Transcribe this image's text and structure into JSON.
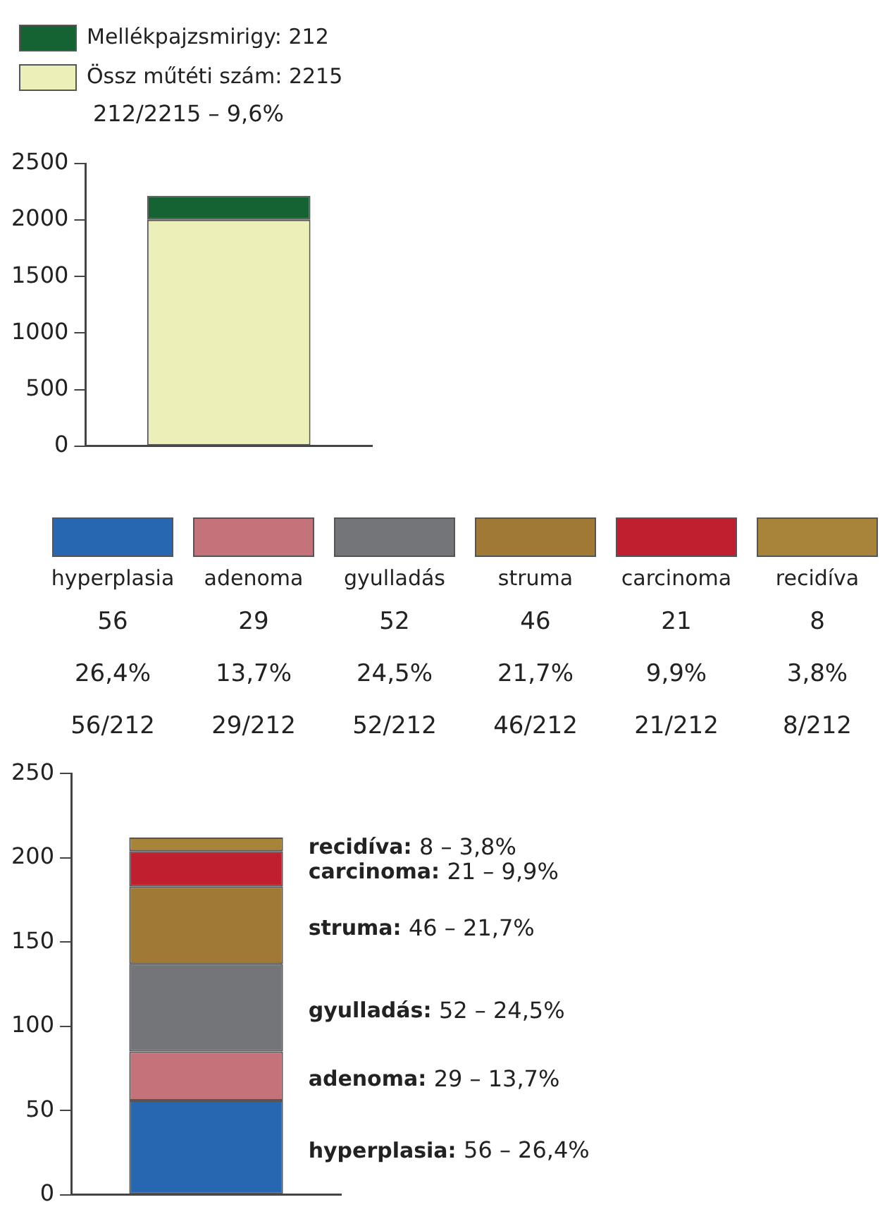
{
  "chart_data": [
    {
      "type": "bar",
      "stacked": true,
      "categories": [
        null
      ],
      "ylim": [
        0,
        2500
      ],
      "yticks": [
        0,
        500,
        1000,
        1500,
        2000,
        2500
      ],
      "tick_labels": "y",
      "grid": false,
      "legend": "top left",
      "annotations": [
        "212/2215 – 9,6%"
      ],
      "series": [
        {
          "name": "Össz műtéti szám: 2215",
          "color": "#ecf0b8",
          "values": [
            2003
          ]
        },
        {
          "name": "Mellékpajzsmirigy: 212",
          "color": "#156232",
          "values": [
            212
          ]
        }
      ]
    },
    {
      "type": "bar",
      "stacked": true,
      "categories": [
        null
      ],
      "ylim": [
        0,
        250
      ],
      "yticks": [
        0,
        50,
        100,
        150,
        200,
        250
      ],
      "tick_labels": "y",
      "grid": false,
      "annotations": [
        "hyperplasia",
        "56",
        "26,4%",
        "56/212",
        "adenoma",
        "29",
        "13,7%",
        "29/212",
        "gyulladás",
        "52",
        "24,5%",
        "52/212",
        "struma",
        "46",
        "21,7%",
        "46/212",
        "carcinoma",
        "21",
        "9,9%",
        "21/212",
        "recidíva",
        "8",
        "3,8%",
        "8/212",
        "56 – 26,4%",
        "29 – 13,7%",
        "52 – 24,5%",
        "46 – 21,7%",
        "21 – 9,9%",
        "8 – 3,8%"
      ],
      "series": [
        {
          "name": "hyperplasia:",
          "color": "#2766b0",
          "values": [
            56
          ]
        },
        {
          "name": "adenoma:",
          "color": "#c4737b",
          "values": [
            29
          ]
        },
        {
          "name": "gyulladás:",
          "color": "#747579",
          "values": [
            52
          ]
        },
        {
          "name": "struma:",
          "color": "#a07a34",
          "values": [
            46
          ]
        },
        {
          "name": "carcinoma:",
          "color": "#c01f2f",
          "values": [
            21
          ]
        },
        {
          "name": "recidíva:",
          "color": "#a8833a",
          "values": [
            8
          ]
        }
      ]
    }
  ]
}
